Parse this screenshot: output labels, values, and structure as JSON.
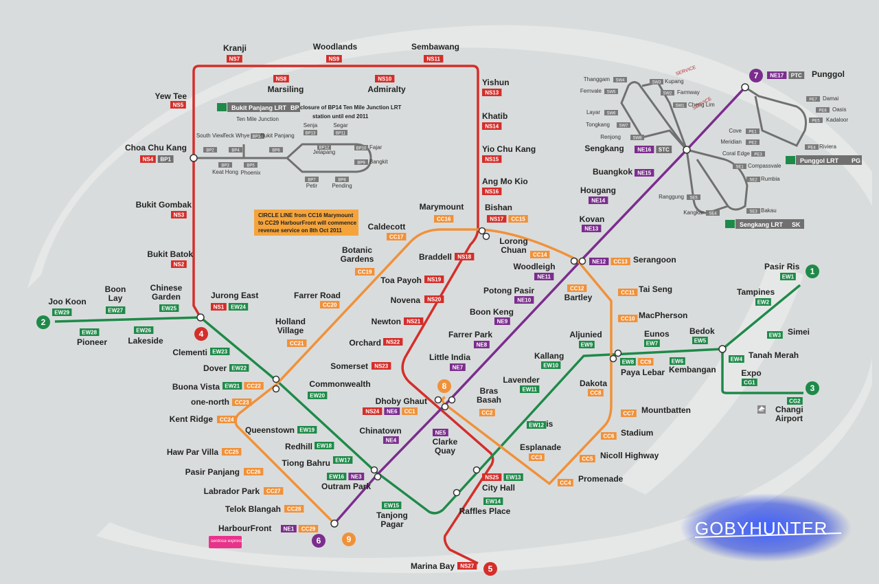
{
  "colors": {
    "ns": "#d42e2a",
    "ew": "#1e8a49",
    "ne": "#7b2d8e",
    "cc": "#f0913a",
    "lrt": "#707070",
    "bg": "#d9dcdc",
    "swirl": "#e8eaea",
    "note_bg": "#f5a43b"
  },
  "lines": [
    {
      "id": "ns",
      "number": "1"
    }
  ],
  "line_markers": [
    {
      "key": "ew_west",
      "number": "2",
      "line": "ew"
    },
    {
      "key": "ew_east",
      "number": "1",
      "line": "ew"
    },
    {
      "key": "cg",
      "number": "3",
      "line": "ew"
    },
    {
      "key": "ns",
      "number": "4",
      "line": "ns"
    },
    {
      "key": "ns_south",
      "number": "5",
      "line": "ns"
    },
    {
      "key": "ne_west",
      "number": "6",
      "line": "ne"
    },
    {
      "key": "ne_north",
      "number": "7",
      "line": "ne"
    },
    {
      "key": "cc_north",
      "number": "8",
      "line": "cc"
    },
    {
      "key": "cc_west",
      "number": "9",
      "line": "cc"
    }
  ],
  "notes": {
    "circle_line": [
      "CIRCLE LINE from CC16 Marymount",
      "to CC29 HarbourFront will commence",
      "revenue service on 8th Oct 2011"
    ],
    "bp_closure": [
      "closure of BP14 Ten Mile Junction LRT",
      "station until end 2011"
    ],
    "bukit_panjang_lrt": "Bukit Panjang LRT",
    "bukit_panjang_code": "BP",
    "punggol_lrt": "Punggol LRT",
    "punggol_code": "PG",
    "sengkang_lrt": "Sengkang LRT",
    "sengkang_code": "SK",
    "sentosa_express": "sentosa express",
    "watermark": "GOBYHUNTER",
    "service_note": "SERVICE"
  },
  "stations": [
    {
      "name": "Kranji",
      "codes": [
        "NS7"
      ]
    },
    {
      "name": "Woodlands",
      "codes": [
        "NS9"
      ]
    },
    {
      "name": "Sembawang",
      "codes": [
        "NS11"
      ]
    },
    {
      "name": "Marsiling",
      "codes": [
        "NS8"
      ]
    },
    {
      "name": "Admiralty",
      "codes": [
        "NS10"
      ]
    },
    {
      "name": "Yew Tee",
      "codes": [
        "NS5"
      ]
    },
    {
      "name": "Yishun",
      "codes": [
        "NS13"
      ]
    },
    {
      "name": "Khatib",
      "codes": [
        "NS14"
      ]
    },
    {
      "name": "Yio Chu Kang",
      "codes": [
        "NS15"
      ]
    },
    {
      "name": "Ang Mo Kio",
      "codes": [
        "NS16"
      ]
    },
    {
      "name": "Choa Chu Kang",
      "codes": [
        "NS4",
        "BP1"
      ]
    },
    {
      "name": "Bukit Gombak",
      "codes": [
        "NS3"
      ]
    },
    {
      "name": "Bukit Batok",
      "codes": [
        "NS2"
      ]
    },
    {
      "name": "Jurong East",
      "codes": [
        "NS1",
        "EW24"
      ]
    },
    {
      "name": "Bishan",
      "codes": [
        "NS17",
        "CC15"
      ]
    },
    {
      "name": "Braddell",
      "codes": [
        "NS18"
      ]
    },
    {
      "name": "Toa Payoh",
      "codes": [
        "NS19"
      ]
    },
    {
      "name": "Novena",
      "codes": [
        "NS20"
      ]
    },
    {
      "name": "Newton",
      "codes": [
        "NS21"
      ]
    },
    {
      "name": "Orchard",
      "codes": [
        "NS22"
      ]
    },
    {
      "name": "Somerset",
      "codes": [
        "NS23"
      ]
    },
    {
      "name": "Dhoby Ghaut",
      "codes": [
        "NS24",
        "NE6",
        "CC1"
      ]
    },
    {
      "name": "City Hall",
      "codes": [
        "NS25",
        "EW13"
      ]
    },
    {
      "name": "Raffles Place",
      "codes": [
        "EW14"
      ]
    },
    {
      "name": "Marina Bay",
      "codes": [
        "NS27"
      ]
    },
    {
      "name": "Joo Koon",
      "codes": [
        "EW29"
      ]
    },
    {
      "name": "Pioneer",
      "codes": [
        "EW28"
      ]
    },
    {
      "name": "Boon Lay",
      "codes": [
        "EW27"
      ]
    },
    {
      "name": "Lakeside",
      "codes": [
        "EW26"
      ]
    },
    {
      "name": "Chinese Garden",
      "codes": [
        "EW25"
      ]
    },
    {
      "name": "Clementi",
      "codes": [
        "EW23"
      ]
    },
    {
      "name": "Dover",
      "codes": [
        "EW22"
      ]
    },
    {
      "name": "Buona Vista",
      "codes": [
        "EW21",
        "CC22"
      ]
    },
    {
      "name": "Commonwealth",
      "codes": [
        "EW20"
      ]
    },
    {
      "name": "Queenstown",
      "codes": [
        "EW19"
      ]
    },
    {
      "name": "Redhill",
      "codes": [
        "EW18"
      ]
    },
    {
      "name": "Tiong Bahru",
      "codes": [
        "EW17"
      ]
    },
    {
      "name": "Outram Park",
      "codes": [
        "EW16",
        "NE3"
      ]
    },
    {
      "name": "Tanjong Pagar",
      "codes": [
        "EW15"
      ]
    },
    {
      "name": "Bugis",
      "codes": [
        "EW12"
      ]
    },
    {
      "name": "Lavender",
      "codes": [
        "EW11"
      ]
    },
    {
      "name": "Kallang",
      "codes": [
        "EW10"
      ]
    },
    {
      "name": "Aljunied",
      "codes": [
        "EW9"
      ]
    },
    {
      "name": "Paya Lebar",
      "codes": [
        "EW8",
        "CC9"
      ]
    },
    {
      "name": "Eunos",
      "codes": [
        "EW7"
      ]
    },
    {
      "name": "Kembangan",
      "codes": [
        "EW6"
      ]
    },
    {
      "name": "Bedok",
      "codes": [
        "EW5"
      ]
    },
    {
      "name": "Tanah Merah",
      "codes": [
        "EW4"
      ]
    },
    {
      "name": "Simei",
      "codes": [
        "EW3"
      ]
    },
    {
      "name": "Tampines",
      "codes": [
        "EW2"
      ]
    },
    {
      "name": "Pasir Ris",
      "codes": [
        "EW1"
      ]
    },
    {
      "name": "Expo",
      "codes": [
        "CG1"
      ]
    },
    {
      "name": "Changi Airport",
      "codes": [
        "CG2"
      ]
    },
    {
      "name": "HarbourFront",
      "codes": [
        "NE1",
        "CC29"
      ]
    },
    {
      "name": "Chinatown",
      "codes": [
        "NE4"
      ]
    },
    {
      "name": "Clarke Quay",
      "codes": [
        "NE5"
      ]
    },
    {
      "name": "Little India",
      "codes": [
        "NE7"
      ]
    },
    {
      "name": "Farrer Park",
      "codes": [
        "NE8"
      ]
    },
    {
      "name": "Boon Keng",
      "codes": [
        "NE9"
      ]
    },
    {
      "name": "Potong Pasir",
      "codes": [
        "NE10"
      ]
    },
    {
      "name": "Woodleigh",
      "codes": [
        "NE11"
      ]
    },
    {
      "name": "Serangoon",
      "codes": [
        "NE12",
        "CC13"
      ]
    },
    {
      "name": "Kovan",
      "codes": [
        "NE13"
      ]
    },
    {
      "name": "Hougang",
      "codes": [
        "NE14"
      ]
    },
    {
      "name": "Buangkok",
      "codes": [
        "NE15"
      ]
    },
    {
      "name": "Sengkang",
      "codes": [
        "NE16",
        "STC"
      ]
    },
    {
      "name": "Punggol",
      "codes": [
        "NE17",
        "PTC"
      ]
    },
    {
      "name": "Marymount",
      "codes": [
        "CC16"
      ]
    },
    {
      "name": "Caldecott",
      "codes": [
        "CC17"
      ]
    },
    {
      "name": "Botanic Gardens",
      "codes": [
        "CC19"
      ]
    },
    {
      "name": "Farrer Road",
      "codes": [
        "CC20"
      ]
    },
    {
      "name": "Holland Village",
      "codes": [
        "CC21"
      ]
    },
    {
      "name": "one-north",
      "codes": [
        "CC23"
      ]
    },
    {
      "name": "Kent Ridge",
      "codes": [
        "CC24"
      ]
    },
    {
      "name": "Haw Par Villa",
      "codes": [
        "CC25"
      ]
    },
    {
      "name": "Pasir Panjang",
      "codes": [
        "CC26"
      ]
    },
    {
      "name": "Labrador Park",
      "codes": [
        "CC27"
      ]
    },
    {
      "name": "Telok Blangah",
      "codes": [
        "CC28"
      ]
    },
    {
      "name": "Lorong Chuan",
      "codes": [
        "CC14"
      ]
    },
    {
      "name": "Bartley",
      "codes": [
        "CC12"
      ]
    },
    {
      "name": "Tai Seng",
      "codes": [
        "CC11"
      ]
    },
    {
      "name": "MacPherson",
      "codes": [
        "CC10"
      ]
    },
    {
      "name": "Dakota",
      "codes": [
        "CC8"
      ]
    },
    {
      "name": "Mountbatten",
      "codes": [
        "CC7"
      ]
    },
    {
      "name": "Stadium",
      "codes": [
        "CC6"
      ]
    },
    {
      "name": "Nicoll Highway",
      "codes": [
        "CC5"
      ]
    },
    {
      "name": "Promenade",
      "codes": [
        "CC4"
      ]
    },
    {
      "name": "Esplanade",
      "codes": [
        "CC3"
      ]
    },
    {
      "name": "Bras Basah",
      "codes": [
        "CC2"
      ]
    }
  ],
  "lrt_stations": [
    {
      "name": "Ten Mile Junction",
      "code": "BP14"
    },
    {
      "name": "South View",
      "code": "BP2"
    },
    {
      "name": "Teck Whye",
      "code": "BP4"
    },
    {
      "name": "Bukit Panjang",
      "code": "BP6"
    },
    {
      "name": "Keat Hong",
      "code": "BP3"
    },
    {
      "name": "Phoenix",
      "code": "BP5"
    },
    {
      "name": "Senja",
      "code": "BP13"
    },
    {
      "name": "Segar",
      "code": "BP11"
    },
    {
      "name": "Jelapang",
      "code": "BP12"
    },
    {
      "name": "Fajar",
      "code": "BP10"
    },
    {
      "name": "Bangkit",
      "code": "BP9"
    },
    {
      "name": "Petir",
      "code": "BP7"
    },
    {
      "name": "Pending",
      "code": "BP8"
    },
    {
      "name": "Thanggam",
      "code": "SW4"
    },
    {
      "name": "Fernvale",
      "code": "SW5"
    },
    {
      "name": "Layar",
      "code": "SW6"
    },
    {
      "name": "Tongkang",
      "code": "SW7"
    },
    {
      "name": "Renjong",
      "code": "SW8"
    },
    {
      "name": "Kupang",
      "code": "SW3"
    },
    {
      "name": "Farmway",
      "code": "SW2"
    },
    {
      "name": "Cheng Lim",
      "code": "SW1"
    },
    {
      "name": "Ranggung",
      "code": "SE5"
    },
    {
      "name": "Kangkar",
      "code": "SE4"
    },
    {
      "name": "Compassvale",
      "code": "SE1"
    },
    {
      "name": "Rumbia",
      "code": "SE2"
    },
    {
      "name": "Bakau",
      "code": "SE3"
    },
    {
      "name": "Damai",
      "code": "PE7"
    },
    {
      "name": "Oasis",
      "code": "PE6"
    },
    {
      "name": "Kadaloor",
      "code": "PE5"
    },
    {
      "name": "Cove",
      "code": "PE1"
    },
    {
      "name": "Meridian",
      "code": "PE2"
    },
    {
      "name": "Coral Edge",
      "code": "PE3"
    },
    {
      "name": "Riviera",
      "code": "PE4"
    }
  ]
}
